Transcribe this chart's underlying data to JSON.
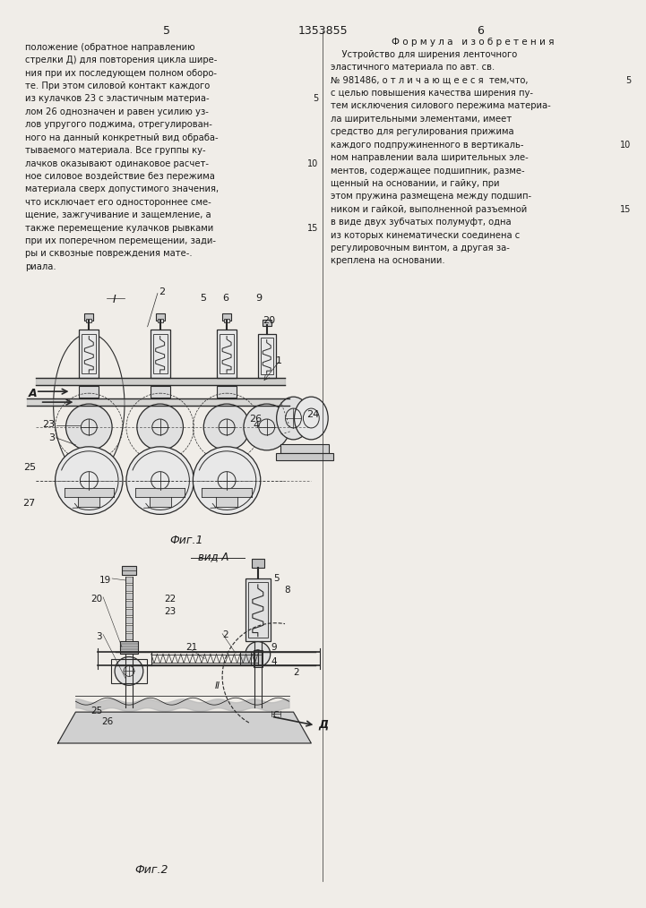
{
  "page_width": 7.07,
  "page_height": 10.0,
  "bg_color": "#f0ede8",
  "text_color": "#1a1a1a",
  "line_color": "#2a2a2a",
  "header": {
    "page_num_left": "5",
    "patent_num": "1353855",
    "page_num_right": "6"
  },
  "left_col_text": [
    "положение (обратное направлению",
    "стрелки Д) для повторения цикла шире-",
    "ния при их последующем полном оборо-",
    "те. При этом силовой контакт каждого",
    "из кулачков 23 с эластичным материа-",
    "лом 26 однозначен и равен усилию уз-",
    "лов упругого поджима, отрегулирован-",
    "ного на данный конкретный вид обраба-",
    "тываемого материала. Все группы ку-",
    "лачков оказывают одинаковое расчет-",
    "ное силовое воздействие без пережима",
    "материала сверх допустимого значения,",
    "что исключает его одностороннее сме-",
    "щение, зажгучивание и защемление, а",
    "также перемещение кулачков рывками",
    "при их поперечном перемещении, зади-",
    "ры и сквозные повреждения мате-.",
    "риала."
  ],
  "right_col_header": "Ф о р м у л а   и з о б р е т е н и я",
  "right_col_text": [
    "    Устройство для ширения ленточного",
    "эластичного материала по авт. св.",
    "№ 981486, о т л и ч а ю щ е е с я  тем,что,",
    "с целью повышения качества ширения пу-",
    "тем исключения силового пережима материа-",
    "ла ширительными элементами, имеет",
    "средство для регулирования прижима",
    "каждого подпружиненного в вертикаль-",
    "ном направлении вала ширительных эле-",
    "ментов, содержащее подшипник, разме-",
    "щенный на основании, и гайку, при",
    "этом пружина размещена между подшип-",
    "ником и гайкой, выполненной разъемной",
    "в виде двух зубчатых полумуфт, одна",
    "из которых кинематически соединена с",
    "регулировочным винтом, а другая за-",
    "креплена на основании."
  ]
}
